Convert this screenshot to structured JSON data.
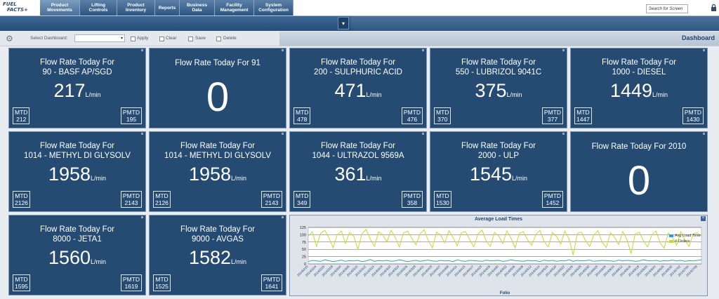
{
  "app": {
    "logo_line1": "FUEL",
    "logo_line2": "FACTS+"
  },
  "nav_tabs": [
    {
      "label": "Product\nMovements",
      "active": true
    },
    {
      "label": "Lifting\nControls"
    },
    {
      "label": "Product\nInventory"
    },
    {
      "label": "Reports"
    },
    {
      "label": "Business Data"
    },
    {
      "label": "Facility\nManagement"
    },
    {
      "label": "System\nConfiguration"
    }
  ],
  "search": {
    "placeholder": "Search for Screen"
  },
  "toolbar": {
    "select_dashboard_label": "Select Dashboard:",
    "apply": "Apply",
    "clear": "Clear",
    "save": "Save",
    "delete": "Delete",
    "page_title": "Dashboard"
  },
  "tiles": [
    {
      "line1": "Flow Rate Today For",
      "line2": "90 - BASF AP/SGD",
      "value": "217",
      "unit": "L/min",
      "mtd": "212",
      "pmtd": "195"
    },
    {
      "line1": "Flow Rate Today For 91",
      "line2": "",
      "value": "0",
      "unit": "",
      "mtd": "",
      "pmtd": "",
      "zero": true
    },
    {
      "line1": "Flow Rate Today For",
      "line2": "200 - SULPHURIC ACID",
      "value": "471",
      "unit": "L/min",
      "mtd": "478",
      "pmtd": "476"
    },
    {
      "line1": "Flow Rate Today For",
      "line2": "550 - LUBRIZOL 9041C",
      "value": "375",
      "unit": "L/min",
      "mtd": "370",
      "pmtd": "377"
    },
    {
      "line1": "Flow Rate Today For",
      "line2": "1000 - DIESEL",
      "value": "1449",
      "unit": "L/min",
      "mtd": "1447",
      "pmtd": "1430"
    },
    {
      "line1": "Flow Rate Today For",
      "line2": "1014 - METHYL DI GLYSOLV",
      "value": "1958",
      "unit": "L/min",
      "mtd": "2126",
      "pmtd": "2143"
    },
    {
      "line1": "Flow Rate Today For",
      "line2": "1014 - METHYL DI GLYSOLV",
      "value": "1958",
      "unit": "L/min",
      "mtd": "2126",
      "pmtd": "2143"
    },
    {
      "line1": "Flow Rate Today For",
      "line2": "1044 - ULTRAZOL 9569A",
      "value": "361",
      "unit": "L/min",
      "mtd": "349",
      "pmtd": "358"
    },
    {
      "line1": "Flow Rate Today For",
      "line2": "2000 - ULP",
      "value": "1545",
      "unit": "L/min",
      "mtd": "1530",
      "pmtd": "1452"
    },
    {
      "line1": "Flow Rate Today For 2010",
      "line2": "",
      "value": "0",
      "unit": "",
      "mtd": "",
      "pmtd": "",
      "zero": true
    },
    {
      "line1": "Flow Rate Today For",
      "line2": "8000 - JETA1",
      "value": "1560",
      "unit": "L/min",
      "mtd": "1595",
      "pmtd": "1619"
    },
    {
      "line1": "Flow Rate Today For",
      "line2": "9000 - AVGAS",
      "value": "1582",
      "unit": "L/min",
      "mtd": "1525",
      "pmtd": "1641"
    }
  ],
  "labels": {
    "mtd": "MTD",
    "pmtd": "PMTD"
  },
  "chart_data": {
    "type": "line",
    "title": "Average Load Times",
    "xlabel": "Folio",
    "ylabel": "",
    "ylim": [
      0,
      125
    ],
    "yticks": [
      0,
      25,
      50,
      75,
      100,
      125
    ],
    "grid": true,
    "legend": "top-right",
    "series": [
      {
        "name": "Avg Load Time",
        "color": "#2a9fd6",
        "values": [
          8,
          12,
          10,
          9,
          14,
          11,
          8,
          10,
          13,
          9,
          11,
          10,
          12,
          8,
          10,
          15,
          9,
          11,
          10,
          12,
          9,
          10,
          14,
          11,
          8,
          10,
          12,
          9,
          11,
          13,
          10,
          9,
          12,
          10,
          11,
          8,
          14,
          10,
          9,
          12,
          11,
          10,
          9,
          13,
          10,
          11,
          12,
          9,
          10,
          14,
          11,
          10,
          9,
          12,
          10,
          11,
          8,
          13,
          10,
          12,
          9,
          11,
          10,
          14,
          9,
          12,
          10,
          11,
          13,
          9,
          10,
          12,
          11,
          10,
          9,
          13,
          10,
          12,
          11,
          9,
          10,
          14,
          11,
          10,
          12,
          9,
          11,
          10,
          13,
          10,
          12,
          9,
          11,
          10,
          12,
          14
        ]
      },
      {
        "name": "# Orders",
        "color": "#c8d82c",
        "values": [
          95,
          110,
          60,
          105,
          115,
          90,
          55,
          100,
          112,
          70,
          108,
          95,
          50,
          104,
          118,
          85,
          60,
          110,
          100,
          75,
          115,
          92,
          58,
          106,
          112,
          88,
          65,
          103,
          117,
          80,
          55,
          109,
          98,
          72,
          114,
          90,
          62,
          107,
          111,
          84,
          58,
          102,
          116,
          78,
          60,
          108,
          96,
          70,
          113,
          88,
          55,
          105,
          110,
          82,
          64,
          101,
          115,
          76,
          58,
          108,
          94,
          68,
          112,
          86,
          30,
          104,
          109,
          80,
          60,
          100,
          114,
          74,
          56,
          107,
          92,
          66,
          111,
          84,
          35,
          103,
          108,
          78,
          58,
          99,
          113,
          72,
          54,
          106,
          90,
          64,
          110,
          82,
          60,
          102,
          107,
          95
        ]
      }
    ],
    "x_categories": [
      "20140220",
      "20140221",
      "20140224",
      "20140225",
      "20140226",
      "20140227",
      "20140228",
      "20140303",
      "20140304",
      "20140305",
      "20140306",
      "20140307",
      "20140310",
      "20140311",
      "20140312",
      "20140313",
      "20140314",
      "20140317",
      "20140318",
      "20140319",
      "20140320",
      "20140321",
      "20140324",
      "20140325",
      "20140326",
      "20140327",
      "20140328",
      "20140331",
      "20140401",
      "20140402",
      "20140403",
      "20140404",
      "20140407",
      "20140408",
      "20140409",
      "20140410",
      "20140411",
      "20140414",
      "20140415",
      "20140416",
      "20140417",
      "20140422",
      "20140423",
      "20140424",
      "20140428",
      "20140429",
      "20140430",
      "20140501",
      "20140502",
      "20140505",
      "20140506",
      "20140507",
      "20140508",
      "20140509",
      "20140512",
      "20140513",
      "20140514",
      "20140515",
      "20140516",
      "20140519",
      "20140520",
      "20140521",
      "20140522",
      "20140523",
      "20140526",
      "20140527",
      "20140528",
      "20140529",
      "20140530",
      "20140602",
      "20140603",
      "20140604",
      "20140605",
      "20140606",
      "20140610",
      "20140611",
      "20140612",
      "20140613",
      "20140616",
      "20140617",
      "20140618",
      "20140619",
      "20140620",
      "20140623",
      "20140624",
      "20140625",
      "20140626",
      "20140627",
      "20140630",
      "20140701",
      "20140702",
      "20140703",
      "20140704",
      "20140707",
      "20140708",
      "20140709"
    ]
  }
}
